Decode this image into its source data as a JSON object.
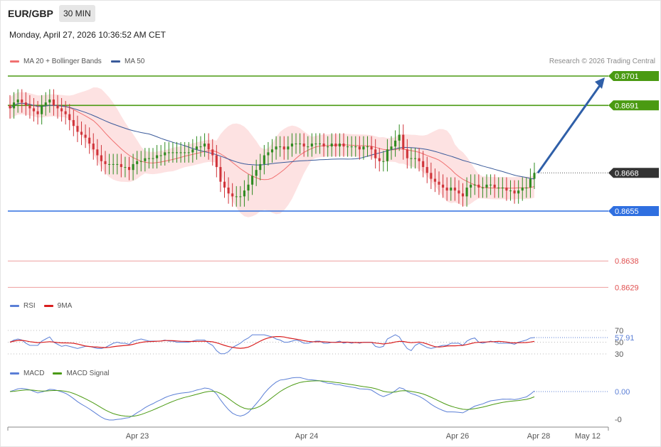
{
  "header": {
    "symbol": "EUR/GBP",
    "timeframe": "30 MIN",
    "datetime": "Monday, April 27, 2026 10:36:52 AM CET"
  },
  "legend": {
    "ma20": "MA 20 + Bollinger Bands",
    "ma50": "MA 50",
    "rsi": "RSI",
    "rsi_ma": "9MA",
    "macd": "MACD",
    "macd_signal": "MACD Signal"
  },
  "credit": "Research © 2026 Trading Central",
  "colors": {
    "resistance": "#4a9a12",
    "current": "#333333",
    "support": "#2f6fe0",
    "lower_levels": "#e05050",
    "ma20": "#f07070",
    "ma50": "#3a5a9a",
    "band_fill": "#fde2e2",
    "up_candle": "#2e8b20",
    "down_candle": "#d0343a",
    "rsi": "#5b7fd6",
    "rsi_ma": "#d91e1e",
    "macd": "#5b7fd6",
    "macd_signal": "#4a9a12",
    "forecast_arrow": "#2f5fa8"
  },
  "chart_data": {
    "type": "candlestick",
    "symbol": "EUR/GBP",
    "interval": "30 MIN",
    "x_ticks": [
      "Apr 23",
      "Apr 24",
      "Apr 26",
      "Apr 28",
      "May 12"
    ],
    "price_ylim": [
      0.86225,
      0.87085
    ],
    "levels": [
      {
        "value": 0.8701,
        "label": "0.8701",
        "kind": "resistance"
      },
      {
        "value": 0.8691,
        "label": "0.8691",
        "kind": "resistance"
      },
      {
        "value": 0.8668,
        "label": "0.8668",
        "kind": "current"
      },
      {
        "value": 0.8655,
        "label": "0.8655",
        "kind": "support"
      },
      {
        "value": 0.8638,
        "label": "0.8638",
        "kind": "level"
      },
      {
        "value": 0.8629,
        "label": "0.8629",
        "kind": "level"
      }
    ],
    "close_series": [
      0.869,
      0.8692,
      0.8693,
      0.8692,
      0.8691,
      0.869,
      0.8689,
      0.8688,
      0.8691,
      0.8692,
      0.8693,
      0.8691,
      0.869,
      0.8689,
      0.8688,
      0.8686,
      0.8684,
      0.8682,
      0.8681,
      0.868,
      0.8678,
      0.8676,
      0.8674,
      0.8672,
      0.8671,
      0.8671,
      0.8671,
      0.8671,
      0.867,
      0.867,
      0.8669,
      0.8671,
      0.8672,
      0.8672,
      0.8673,
      0.8673,
      0.8673,
      0.8674,
      0.8674,
      0.8675,
      0.8675,
      0.8675,
      0.8675,
      0.8675,
      0.8675,
      0.8675,
      0.8676,
      0.8677,
      0.8677,
      0.8678,
      0.8676,
      0.8674,
      0.867,
      0.8665,
      0.8663,
      0.8661,
      0.866,
      0.866,
      0.866,
      0.8662,
      0.8664,
      0.8667,
      0.8669,
      0.8671,
      0.8674,
      0.8675,
      0.8676,
      0.8677,
      0.8677,
      0.8676,
      0.8677,
      0.8678,
      0.8678,
      0.8678,
      0.8677,
      0.8677,
      0.8678,
      0.8678,
      0.8678,
      0.8677,
      0.8677,
      0.8678,
      0.8677,
      0.8678,
      0.8677,
      0.8677,
      0.8677,
      0.8677,
      0.8676,
      0.8677,
      0.8677,
      0.8676,
      0.8673,
      0.8672,
      0.8672,
      0.8676,
      0.8677,
      0.8679,
      0.8681,
      0.8676,
      0.8673,
      0.8673,
      0.8673,
      0.8672,
      0.867,
      0.8668,
      0.8666,
      0.8665,
      0.8664,
      0.8663,
      0.8662,
      0.8663,
      0.8662,
      0.8661,
      0.866,
      0.8663,
      0.8664,
      0.8664,
      0.8663,
      0.8663,
      0.8664,
      0.8664,
      0.8663,
      0.8663,
      0.8663,
      0.8662,
      0.8662,
      0.8661,
      0.8662,
      0.8663,
      0.8663,
      0.8666,
      0.8668
    ],
    "forecast_arrow": {
      "from": 0.8668,
      "to": 0.8701
    },
    "rsi": {
      "value": 57.91,
      "label": "57.91",
      "levels": [
        70,
        50,
        30
      ],
      "ylim": [
        15,
        85
      ]
    },
    "macd": {
      "value_label": "0.00",
      "axis_labels": [
        "0.00",
        "-0"
      ]
    }
  }
}
